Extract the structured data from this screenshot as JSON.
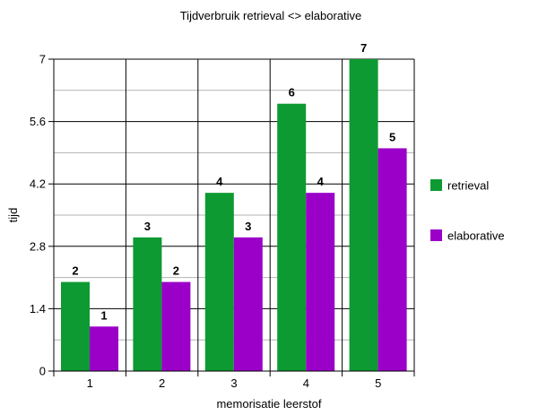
{
  "chart_data": {
    "type": "bar",
    "title": "Tijdverbruik retrieval <> elaborative",
    "xlabel": "memorisatie leerstof",
    "ylabel": "tijd",
    "categories": [
      "1",
      "2",
      "3",
      "4",
      "5"
    ],
    "series": [
      {
        "name": "retrieval",
        "color": "#0e9a32",
        "values": [
          2,
          3,
          4,
          6,
          7
        ]
      },
      {
        "name": "elaborative",
        "color": "#9b00c9",
        "values": [
          1,
          2,
          3,
          4,
          5
        ]
      }
    ],
    "ylim": [
      0,
      7
    ],
    "yticks": [
      "0",
      "1.4",
      "2.8",
      "4.2",
      "5.6",
      "7"
    ],
    "grid": true,
    "legend": "right"
  }
}
